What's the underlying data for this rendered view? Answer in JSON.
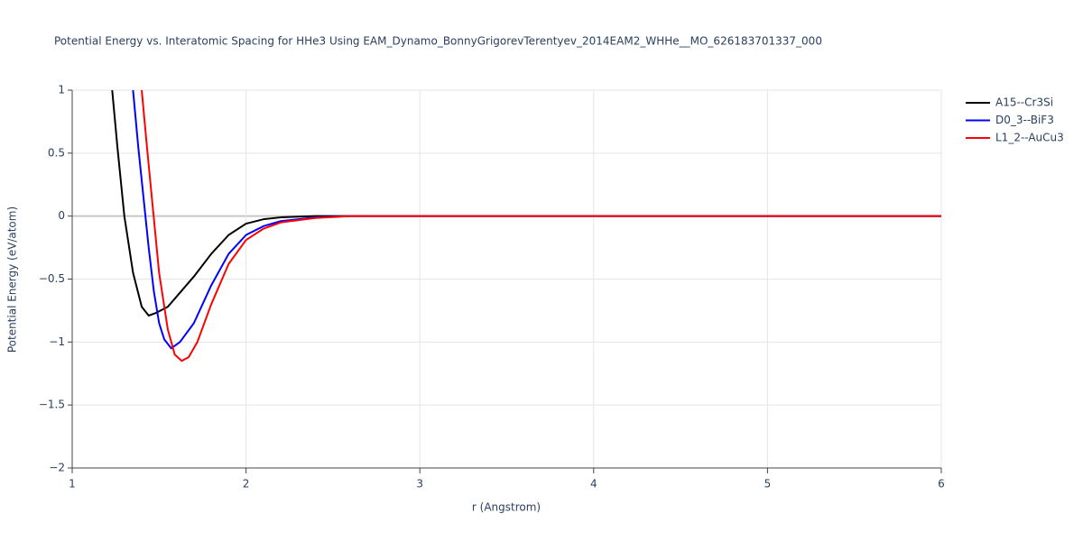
{
  "chart_data": {
    "type": "line",
    "title": "Potential Energy vs. Interatomic Spacing for HHe3 Using EAM_Dynamo_BonnyGrigorevTerentyev_2014EAM2_WHHe__MO_626183701337_000",
    "x_label": "r (Angstrom)",
    "y_label": "Potential Energy (eV/atom)",
    "xlim": [
      1,
      6
    ],
    "ylim": [
      -2,
      1
    ],
    "xticks": [
      1,
      2,
      3,
      4,
      5,
      6
    ],
    "yticks": [
      1,
      0.5,
      0,
      {
        "value": -0.5,
        "label": "−0.5"
      },
      {
        "value": -1,
        "label": "−1"
      },
      {
        "value": -1.5,
        "label": "−1.5"
      },
      {
        "value": -2,
        "label": "−2"
      }
    ],
    "grid": true,
    "legend_position": "right",
    "series": [
      {
        "name": "A15--Cr3Si",
        "color": "#000000",
        "x": [
          1.23,
          1.26,
          1.3,
          1.35,
          1.4,
          1.44,
          1.48,
          1.55,
          1.6,
          1.7,
          1.8,
          1.9,
          2.0,
          2.1,
          2.2,
          2.4,
          2.6,
          3,
          4,
          5,
          6
        ],
        "values": [
          1.0,
          0.55,
          0.0,
          -0.45,
          -0.72,
          -0.79,
          -0.77,
          -0.72,
          -0.64,
          -0.48,
          -0.3,
          -0.15,
          -0.06,
          -0.025,
          -0.01,
          0,
          0,
          0,
          0,
          0,
          0
        ]
      },
      {
        "name": "D0_3--BiF3",
        "color": "#0000ff",
        "x": [
          1.35,
          1.38,
          1.41,
          1.44,
          1.47,
          1.5,
          1.53,
          1.57,
          1.62,
          1.7,
          1.8,
          1.9,
          2.0,
          2.1,
          2.2,
          2.4,
          2.6,
          3,
          4,
          5,
          6
        ],
        "values": [
          1.0,
          0.55,
          0.15,
          -0.25,
          -0.6,
          -0.85,
          -0.98,
          -1.05,
          -1.0,
          -0.85,
          -0.55,
          -0.3,
          -0.15,
          -0.08,
          -0.04,
          -0.01,
          0,
          0,
          0,
          0,
          0
        ]
      },
      {
        "name": "L1_2--AuCu3",
        "color": "#ff0000",
        "x": [
          1.4,
          1.43,
          1.46,
          1.5,
          1.55,
          1.59,
          1.63,
          1.67,
          1.72,
          1.8,
          1.9,
          2.0,
          2.1,
          2.2,
          2.4,
          2.6,
          3,
          4,
          5,
          6
        ],
        "values": [
          1.0,
          0.55,
          0.12,
          -0.45,
          -0.9,
          -1.1,
          -1.15,
          -1.12,
          -1.0,
          -0.7,
          -0.38,
          -0.19,
          -0.1,
          -0.05,
          -0.015,
          0,
          0,
          0,
          0,
          0
        ]
      }
    ]
  }
}
